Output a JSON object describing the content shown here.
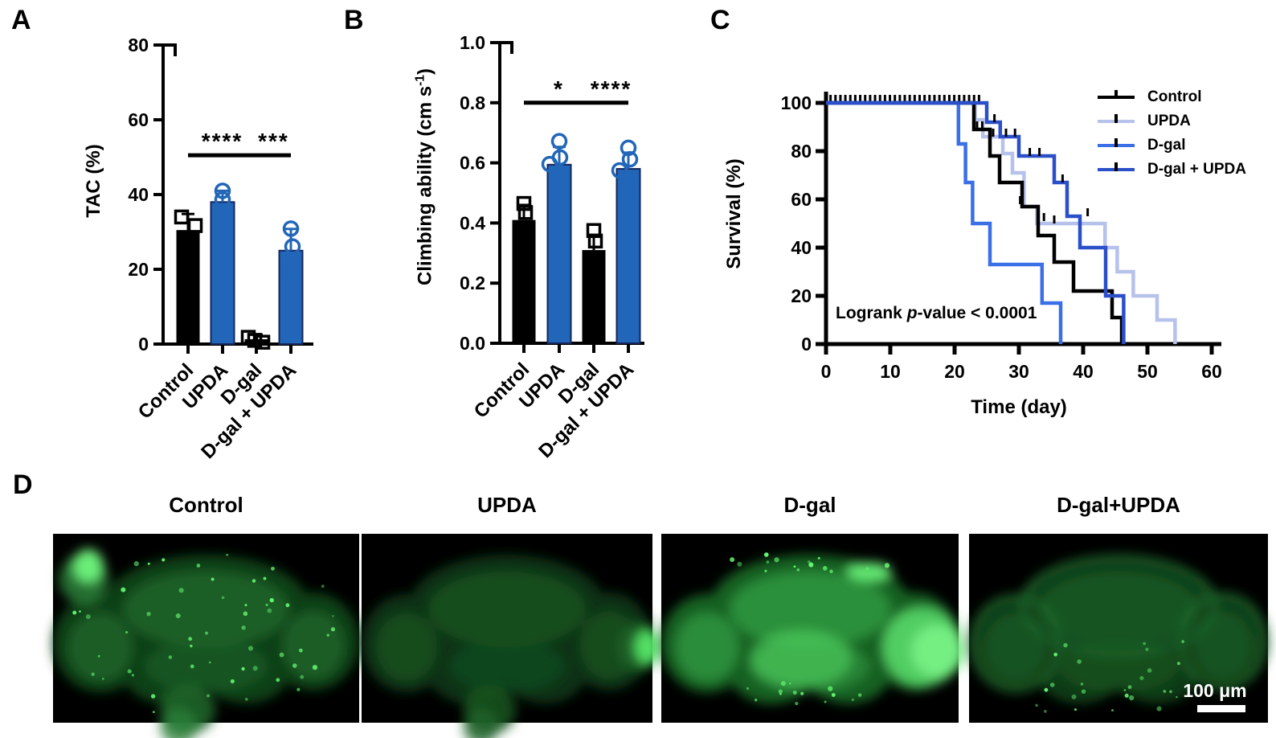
{
  "figure_labels": {
    "a": "A",
    "b": "B",
    "c": "C",
    "d": "D"
  },
  "colors": {
    "black": "#000000",
    "bar_blue": "#2166b8",
    "bar_blue_edge": "#15255a",
    "km_control": "#000000",
    "km_upda": "#b6c1ec",
    "km_dgal": "#3a6fe8",
    "km_dgal_upda": "#2a4fc8",
    "puncta_green": "#66f573"
  },
  "chart_data": [
    {
      "id": "A",
      "type": "bar",
      "title": "",
      "xlabel": "",
      "ylabel": "TAC (%)",
      "ylim": [
        0,
        80
      ],
      "yticks": [
        0,
        20,
        40,
        60,
        80
      ],
      "categories": [
        "Control",
        "UPDA",
        "D-gal",
        "D-gal + UPDA"
      ],
      "bar_styles": [
        "black",
        "blue",
        "black",
        "blue"
      ],
      "values": [
        30.5,
        38,
        1.3,
        25
      ],
      "errors_up": [
        4.3,
        3,
        1.2,
        5.8
      ],
      "points": [
        [
          34,
          31.7
        ],
        [
          41,
          38.7
        ],
        [
          1.8,
          1,
          0.5
        ],
        [
          30.9,
          26.1,
          19.6
        ]
      ],
      "points_dx": [
        [
          -8,
          9
        ],
        [
          0,
          0
        ],
        [
          -10,
          -2,
          8
        ],
        [
          0,
          2,
          -1
        ]
      ],
      "significance": [
        {
          "from": 0,
          "to": 2,
          "y": 50.5,
          "stars": "****"
        },
        {
          "from": 2,
          "to": 3,
          "y": 50.5,
          "stars": "***"
        }
      ]
    },
    {
      "id": "B",
      "type": "bar",
      "title": "",
      "xlabel": "",
      "ylabel": "Climbing ability (cm s⁻¹)",
      "ylim": [
        0,
        1.0
      ],
      "yticks": [
        0,
        0.2,
        0.4,
        0.6,
        0.8,
        1.0
      ],
      "categories": [
        "Control",
        "UPDA",
        "D-gal",
        "D-gal + UPDA"
      ],
      "bar_styles": [
        "black",
        "blue",
        "black",
        "blue"
      ],
      "values": [
        0.41,
        0.594,
        0.31,
        0.58
      ],
      "errors_up": [
        0.05,
        0.059,
        0.05,
        0.054
      ],
      "points": [
        [
          0.465,
          0.435
        ],
        [
          0.672,
          0.618,
          0.596
        ],
        [
          0.375,
          0.34
        ],
        [
          0.65,
          0.612,
          0.575,
          0.511
        ]
      ],
      "points_dx": [
        [
          0,
          2
        ],
        [
          0,
          1,
          -12
        ],
        [
          0,
          2
        ],
        [
          0,
          2,
          -11,
          0
        ]
      ],
      "significance": [
        {
          "from": 0,
          "to": 2,
          "y": 0.8,
          "stars": "*"
        },
        {
          "from": 2,
          "to": 3,
          "y": 0.8,
          "stars": "****"
        }
      ]
    },
    {
      "id": "C",
      "type": "line",
      "subtype": "kaplan_meier_step",
      "title": "",
      "xlabel": "Time (day)",
      "ylabel": "Survival (%)",
      "xlim": [
        0,
        60
      ],
      "ylim": [
        0,
        100
      ],
      "xticks": [
        0,
        10,
        20,
        30,
        40,
        50,
        60
      ],
      "yticks": [
        0,
        20,
        40,
        60,
        80,
        100
      ],
      "annotation": "Logrank p-value < 0.0001",
      "legend_position": "top-right",
      "series": [
        {
          "name": "Control",
          "color_key": "km_control",
          "drops": [
            [
              23,
              89
            ],
            [
              25.5,
              78
            ],
            [
              27,
              67
            ],
            [
              30.5,
              57
            ],
            [
              33,
              45
            ],
            [
              35.5,
              34
            ],
            [
              38.5,
              22
            ],
            [
              44.5,
              11
            ],
            [
              46,
              0
            ]
          ],
          "censor_ticks": [
            [
              23.5,
              89
            ],
            [
              24.3,
              89
            ]
          ]
        },
        {
          "name": "UPDA",
          "color_key": "km_upda",
          "drops": [
            [
              23.2,
              93
            ],
            [
              24.4,
              86
            ],
            [
              27.5,
              79
            ],
            [
              29,
              71
            ],
            [
              30.8,
              57
            ],
            [
              32.8,
              50
            ],
            [
              43.4,
              40
            ],
            [
              45.3,
              30
            ],
            [
              47.8,
              20
            ],
            [
              51.5,
              10
            ],
            [
              54.3,
              0
            ]
          ],
          "censor_ticks": [
            [
              26,
              86
            ],
            [
              30.2,
              58
            ],
            [
              33.9,
              51
            ],
            [
              35.5,
              50
            ]
          ]
        },
        {
          "name": "D-gal",
          "color_key": "km_dgal",
          "drops": [
            [
              20.6,
              83
            ],
            [
              21.7,
              67
            ],
            [
              22.8,
              50
            ],
            [
              25.5,
              33
            ],
            [
              33.6,
              17
            ],
            [
              36.5,
              0
            ]
          ],
          "censor_ticks": []
        },
        {
          "name": "D-gal + UPDA",
          "color_key": "km_dgal_upda",
          "drops": [
            [
              25,
              92
            ],
            [
              27.1,
              86
            ],
            [
              30,
              78
            ],
            [
              35.5,
              67
            ],
            [
              37.5,
              53
            ],
            [
              39.5,
              40
            ],
            [
              43.5,
              20
            ],
            [
              46.3,
              0
            ]
          ],
          "censor_ticks": [
            [
              26.2,
              92
            ],
            [
              28,
              86
            ],
            [
              29.4,
              86
            ],
            [
              31.7,
              78
            ],
            [
              33.2,
              78
            ],
            [
              36.8,
              67
            ],
            [
              40.7,
              53
            ]
          ]
        }
      ],
      "censor_row_at_100pct": {
        "from_day": 0.7,
        "to_day": 23.8,
        "count": 31
      }
    }
  ],
  "panels": {
    "b": {
      "ylabel_parts": {
        "pre": "Climbing ability (cm s",
        "sup": "-1",
        "post": ")"
      }
    },
    "c": {
      "logrank": {
        "pre": "Logrank ",
        "it": "p",
        "post": "-value < 0.0001"
      }
    },
    "d": {
      "images": [
        {
          "title": "Control",
          "intensity": "medium",
          "features": [
            "bright-patch-top-left",
            "puncta-scatter",
            "bottom-appendage"
          ]
        },
        {
          "title": "UPDA",
          "intensity": "dim",
          "features": [
            "bright-spot-right",
            "bottom-appendage"
          ]
        },
        {
          "title": "D-gal",
          "intensity": "bright",
          "features": [
            "bright-lobe-right",
            "bright-spot-top-right",
            "center-glow",
            "edge-puncta"
          ]
        },
        {
          "title": "D-gal+UPDA",
          "intensity": "medium-dim",
          "features": [
            "rim",
            "bottom-puncta"
          ]
        }
      ],
      "scale_bar_label": "100 μm"
    }
  }
}
